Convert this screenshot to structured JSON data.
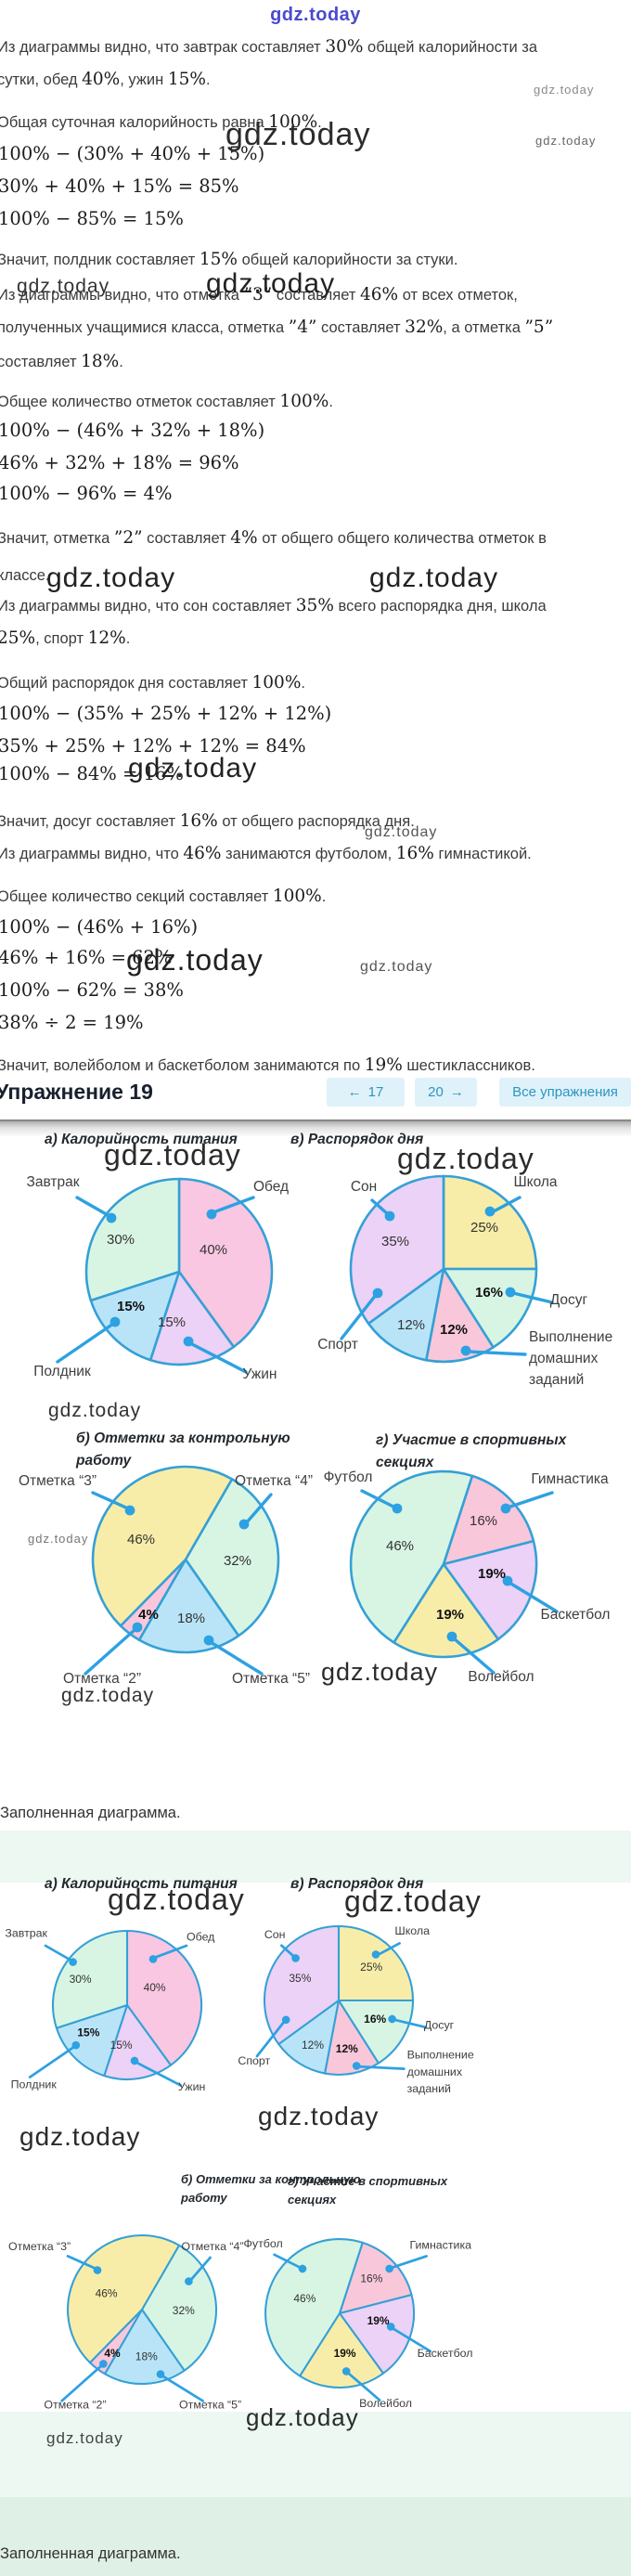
{
  "logo": "gdz.today",
  "watermark_text": "gdz.today",
  "figure_caption": "Заполненная диаграмма.",
  "exercise": {
    "title": "Упражнение 19",
    "prev_label": "17",
    "next_label": "20",
    "all_label": "Все упражнения",
    "prev_arrow": "←",
    "next_arrow": "→"
  },
  "colors": {
    "pie_stroke": "#35a0d6",
    "callout": "#2da1e2",
    "nav_bg": "#dff2fa",
    "nav_text": "#2e95c0",
    "green_bg": "#ecf8f1",
    "green_strip": "#dff0e6",
    "label_text": "#3f3f3f",
    "pct_text": "#333333",
    "pct_bold_text": "#111111"
  },
  "solution": {
    "lines": [
      {
        "seg": [
          {
            "t": "Из диаграммы видно, что завтрак составляет "
          },
          {
            "m": "30%"
          },
          {
            "t": " общей калорийности за"
          }
        ]
      },
      {
        "seg": [
          {
            "t": "сутки, обед "
          },
          {
            "m": "40%"
          },
          {
            "t": ", ужин "
          },
          {
            "m": "15%"
          },
          {
            "t": "."
          }
        ]
      },
      {
        "seg": [
          {
            "t": "Общая суточная калорийность равна "
          },
          {
            "m": "100%"
          },
          {
            "t": "."
          }
        ]
      },
      {
        "math": "100% − (30% + 40% + 15%)"
      },
      {
        "math": "30% + 40% + 15% = 85%"
      },
      {
        "math": "100% − 85% = 15%"
      },
      {
        "seg": [
          {
            "t": "Значит, полдник составляет "
          },
          {
            "m": "15%"
          },
          {
            "t": " общей калорийности за стуки."
          }
        ]
      },
      {
        "seg": [
          {
            "t": "Из диаграммы видно, что отметка "
          },
          {
            "m": "”3”"
          },
          {
            "t": " составляет "
          },
          {
            "m": "46%"
          },
          {
            "t": " от всех отметок,"
          }
        ]
      },
      {
        "seg": [
          {
            "t": "полученных учащимися класса, отметка "
          },
          {
            "m": "”4”"
          },
          {
            "t": " составляет "
          },
          {
            "m": "32%"
          },
          {
            "t": ", а отметка "
          },
          {
            "m": "”5”"
          }
        ]
      },
      {
        "seg": [
          {
            "t": "составляет "
          },
          {
            "m": "18%"
          },
          {
            "t": "."
          }
        ]
      },
      {
        "seg": [
          {
            "t": "Общее количество отметок составляет "
          },
          {
            "m": "100%"
          },
          {
            "t": "."
          }
        ]
      },
      {
        "math": "100% − (46% + 32% + 18%)"
      },
      {
        "math": "46% + 32% + 18% = 96%"
      },
      {
        "math": "100% − 96% = 4%"
      },
      {
        "seg": [
          {
            "t": "Значит, отметка "
          },
          {
            "m": "”2”"
          },
          {
            "t": " составляет "
          },
          {
            "m": "4%"
          },
          {
            "t": " от общего общего количества отметок в"
          }
        ]
      },
      {
        "seg": [
          {
            "t": "классе."
          }
        ]
      },
      {
        "seg": [
          {
            "t": "Из диаграммы видно, что сон составляет "
          },
          {
            "m": "35%"
          },
          {
            "t": " всего распорядка дня, школа"
          }
        ]
      },
      {
        "seg": [
          {
            "m": "25%"
          },
          {
            "t": ", спорт "
          },
          {
            "m": "12%"
          },
          {
            "t": "."
          }
        ]
      },
      {
        "seg": [
          {
            "t": "Общий распорядок дня составляет "
          },
          {
            "m": "100%"
          },
          {
            "t": "."
          }
        ]
      },
      {
        "math": "100% − (35% + 25% + 12% + 12%)"
      },
      {
        "math": "35% + 25% + 12% + 12% = 84%"
      },
      {
        "math": "100% − 84% = 16%"
      },
      {
        "seg": [
          {
            "t": "Значит, досуг составляет "
          },
          {
            "m": "16%"
          },
          {
            "t": " от общего распорядка дня."
          }
        ]
      },
      {
        "seg": [
          {
            "t": "Из диаграммы видно, что "
          },
          {
            "m": "46%"
          },
          {
            "t": " занимаются футболом, "
          },
          {
            "m": "16%"
          },
          {
            "t": " гимнастикой."
          }
        ]
      },
      {
        "seg": [
          {
            "t": "Общее количество секций составляет "
          },
          {
            "m": "100%"
          },
          {
            "t": "."
          }
        ]
      },
      {
        "math": "100% − (46% + 16%)"
      },
      {
        "math": "46% + 16% = 62%"
      },
      {
        "math": "100% − 62% = 38%"
      },
      {
        "math": "38% ÷ 2 = 19%"
      },
      {
        "seg": [
          {
            "t": "Значит, волейболом и баскетболом занимаются по "
          },
          {
            "m": "19%"
          },
          {
            "t": " шестиклассников."
          }
        ]
      }
    ]
  },
  "chart_data": [
    {
      "id": "a",
      "type": "pie",
      "title": "а) Калорийность питания",
      "start_angle": 0,
      "legend_position": "callouts",
      "grid": false,
      "slices": [
        {
          "label": "Обед",
          "value": 40,
          "color": "#f9c7e2",
          "bold_value": false
        },
        {
          "label": "Ужин",
          "value": 15,
          "color": "#ecd2f6",
          "bold_value": false
        },
        {
          "label": "Полдник",
          "value": 15,
          "color": "#b9e4f8",
          "bold_value": true
        },
        {
          "label": "Завтрак",
          "value": 30,
          "color": "#d8f5e3",
          "bold_value": false
        }
      ]
    },
    {
      "id": "v",
      "type": "pie",
      "title": "в) Распорядок дня",
      "start_angle": 0,
      "legend_position": "callouts",
      "grid": false,
      "slices": [
        {
          "label": "Школа",
          "value": 25,
          "color": "#f8eda8",
          "bold_value": false
        },
        {
          "label": "Досуг",
          "value": 16,
          "color": "#d8f5e3",
          "bold_value": true
        },
        {
          "label": "Выполнение домашних заданий",
          "value": 12,
          "color": "#f9c7da",
          "bold_value": true
        },
        {
          "label": "Спорт",
          "value": 12,
          "color": "#b9e4f8",
          "bold_value": false
        },
        {
          "label": "Сон",
          "value": 35,
          "color": "#ecd2f6",
          "bold_value": false
        }
      ]
    },
    {
      "id": "b",
      "type": "pie",
      "title": "б) Отметки за контрольную работу",
      "start_angle": 30,
      "legend_position": "callouts",
      "grid": false,
      "slices": [
        {
          "label": "Отметка “4”",
          "value": 32,
          "color": "#d8f5e3",
          "bold_value": false
        },
        {
          "label": "Отметка “5”",
          "value": 18,
          "color": "#b9e4f8",
          "bold_value": false
        },
        {
          "label": "Отметка “2”",
          "value": 4,
          "color": "#f9c7da",
          "bold_value": true
        },
        {
          "label": "Отметка “3”",
          "value": 46,
          "color": "#f8eda8",
          "bold_value": false
        }
      ]
    },
    {
      "id": "g",
      "type": "pie",
      "title": "г) Участие в спортивных секциях",
      "start_angle": 18,
      "legend_position": "callouts",
      "grid": false,
      "slices": [
        {
          "label": "Гимнастика",
          "value": 16,
          "color": "#f9c7da",
          "bold_value": false
        },
        {
          "label": "Баскетбол",
          "value": 19,
          "color": "#ecd2f6",
          "bold_value": true
        },
        {
          "label": "Волейбол",
          "value": 19,
          "color": "#f8eda8",
          "bold_value": true
        },
        {
          "label": "Футбол",
          "value": 46,
          "color": "#d8f5e3",
          "bold_value": false
        }
      ]
    }
  ]
}
